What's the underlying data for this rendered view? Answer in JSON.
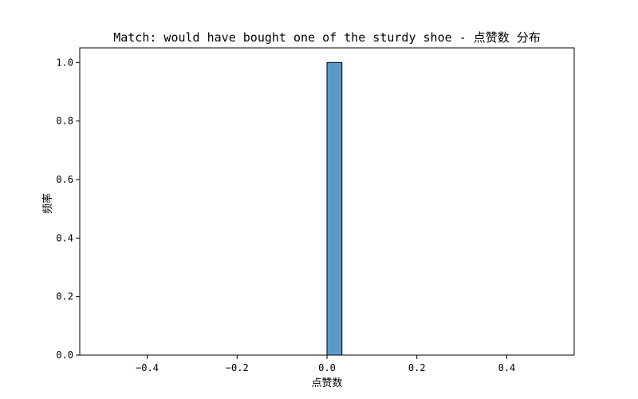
{
  "chart_data": {
    "type": "bar",
    "title": "Match: would have bought one of the sturdy shoe - 点赞数 分布",
    "xlabel": "点赞数",
    "ylabel": "频率",
    "xlim": [
      -0.55,
      0.55
    ],
    "ylim": [
      0,
      1.05
    ],
    "x_ticks": [
      -0.4,
      -0.2,
      0.0,
      0.2,
      0.4
    ],
    "x_tick_labels": [
      "−0.4",
      "−0.2",
      "0.0",
      "0.2",
      "0.4"
    ],
    "y_ticks": [
      0.0,
      0.2,
      0.4,
      0.6,
      0.8,
      1.0
    ],
    "y_tick_labels": [
      "0.0",
      "0.2",
      "0.4",
      "0.6",
      "0.8",
      "1.0"
    ],
    "bins": [
      {
        "start": 0.0,
        "end": 0.0333,
        "value": 1.0
      }
    ],
    "baseline_range": [
      -0.5,
      0.5
    ],
    "grid": false,
    "colors": {
      "bar_fill": "#5b9ac8",
      "bar_edge": "#000000",
      "axes": "#000000"
    }
  }
}
